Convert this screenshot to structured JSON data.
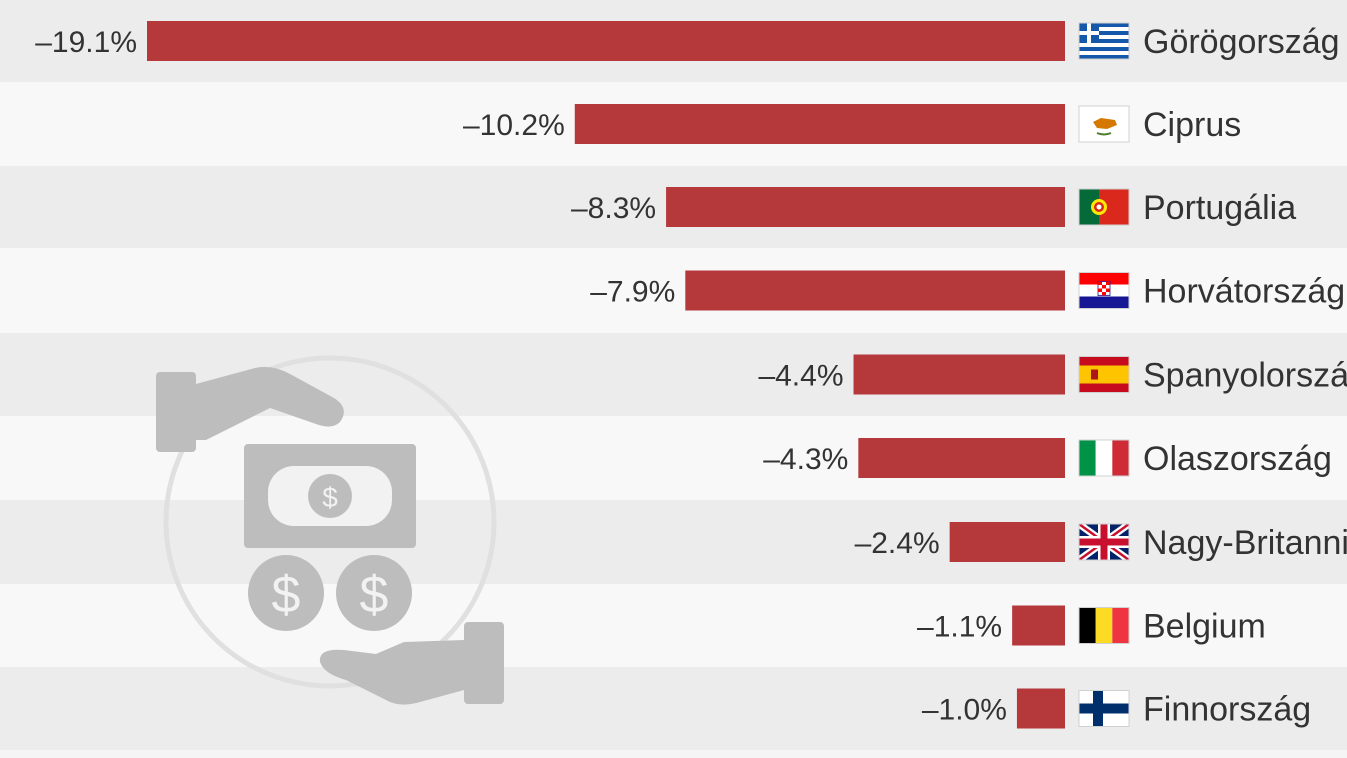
{
  "chart_data": {
    "type": "bar",
    "orientation": "horizontal",
    "categories": [
      "Görögország",
      "Ciprus",
      "Portugália",
      "Horvátország",
      "Spanyolország",
      "Olaszország",
      "Nagy-Britannia",
      "Belgium",
      "Finnország"
    ],
    "values": [
      -19.1,
      -10.2,
      -8.3,
      -7.9,
      -4.4,
      -4.3,
      -2.4,
      -1.1,
      -1.0
    ],
    "value_labels": [
      "–19.1%",
      "–10.2%",
      "–8.3%",
      "–7.9%",
      "–4.4%",
      "–4.3%",
      "–2.4%",
      "–1.1%",
      "–1.0%"
    ],
    "flags": [
      "greece-flag-icon",
      "cyprus-flag-icon",
      "portugal-flag-icon",
      "croatia-flag-icon",
      "spain-flag-icon",
      "italy-flag-icon",
      "uk-flag-icon",
      "belgium-flag-icon",
      "finland-flag-icon"
    ],
    "title": "",
    "xlabel": "",
    "ylabel": "",
    "xlim": [
      -20,
      0
    ],
    "bar_color": "#b5393b",
    "grid": false,
    "legend": "none"
  },
  "decoration": {
    "icon": "money-exchange-hands-icon",
    "color": "#bdbdbd"
  }
}
